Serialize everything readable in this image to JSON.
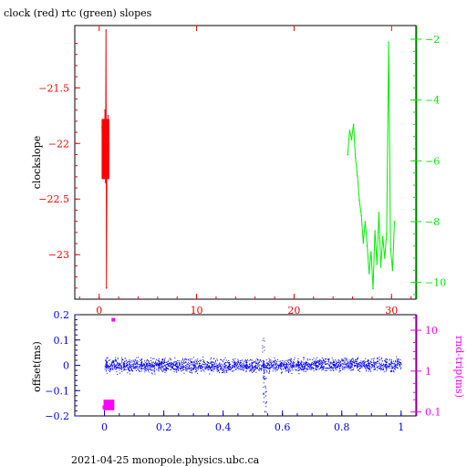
{
  "title": "clock (red) rtc (green) slopes",
  "footer": "2021-04-25  monopole.physics.ubc.ca",
  "colors": {
    "clock": "#ff0000",
    "rtc": "#00ee00",
    "offset": "#0000ff",
    "rndtrip": "#ff00ff",
    "frame": "#000000"
  },
  "chart_data": [
    {
      "type": "line",
      "name": "slopes",
      "ylabel": "clockslope",
      "xlim": [
        -2.5,
        32.5
      ],
      "x_ticks": [
        "0",
        "10",
        "20",
        "30"
      ],
      "y_left_lim": [
        -23.4,
        -20.94
      ],
      "y_left_ticks": [
        "-21.5",
        "-22",
        "-22.5",
        "-23"
      ],
      "y_right_lim": [
        -10.55,
        -1.55
      ],
      "y_right_ticks": [
        "-2",
        "-4",
        "-6",
        "-8",
        "-10"
      ],
      "series": [
        {
          "name": "clock",
          "axis": "left",
          "x": [
            0.3,
            0.35,
            0.4,
            0.45,
            0.5,
            0.55,
            0.6,
            0.65,
            0.7,
            0.75,
            0.8,
            0.85,
            0.9,
            0.95,
            1.0
          ],
          "y": [
            -21.85,
            -22.2,
            -21.9,
            -22.3,
            -21.8,
            -22.1,
            -21.7,
            -22.35,
            -20.98,
            -23.3,
            -21.95,
            -22.25,
            -21.75,
            -22.2,
            -22.0
          ]
        },
        {
          "name": "rtc",
          "axis": "right",
          "x": [
            25.5,
            25.7,
            25.9,
            26.1,
            26.3,
            26.5,
            26.7,
            26.9,
            27.1,
            27.3,
            27.5,
            27.7,
            27.9,
            28.1,
            28.3,
            28.5,
            28.7,
            28.9,
            29.1,
            29.3,
            29.5,
            29.7,
            29.9,
            30.1,
            30.3
          ],
          "y": [
            -5.8,
            -5.0,
            -5.3,
            -4.8,
            -5.9,
            -6.5,
            -7.3,
            -7.8,
            -8.7,
            -8.0,
            -8.8,
            -9.7,
            -9.0,
            -10.2,
            -8.3,
            -9.4,
            -7.7,
            -9.5,
            -8.5,
            -9.2,
            -8.4,
            -2.1,
            -8.9,
            -9.6,
            -8.0
          ]
        }
      ]
    },
    {
      "type": "scatter",
      "name": "offset-rndtrip",
      "ylabel": "offset(ms)",
      "y2label": "rnd-trip(ms)",
      "xlim": [
        -0.1,
        1.05
      ],
      "x_ticks": [
        "0",
        "0.2",
        "0.4",
        "0.6",
        "0.8",
        "1"
      ],
      "y_left_lim": [
        -0.2,
        0.2
      ],
      "y_left_ticks": [
        "0.2",
        "0.1",
        "0",
        "-0.1",
        "-0.2"
      ],
      "y_right_log": true,
      "y_right_lim": [
        0.08,
        24
      ],
      "y_right_ticks": [
        "10",
        "1",
        "0.1"
      ],
      "series": [
        {
          "name": "offset",
          "axis": "left",
          "x_range": [
            0.0,
            1.0
          ],
          "baseline": 0.0,
          "spread": 0.012,
          "dip_x": 0.54,
          "dip_y": [
            -0.19,
            -0.08,
            0.0
          ]
        },
        {
          "name": "rndtrip",
          "axis": "right",
          "x_range": [
            0.0,
            0.03
          ],
          "y": [
            0.13,
            0.15,
            0.17,
            0.14,
            0.16,
            18
          ]
        }
      ]
    }
  ]
}
